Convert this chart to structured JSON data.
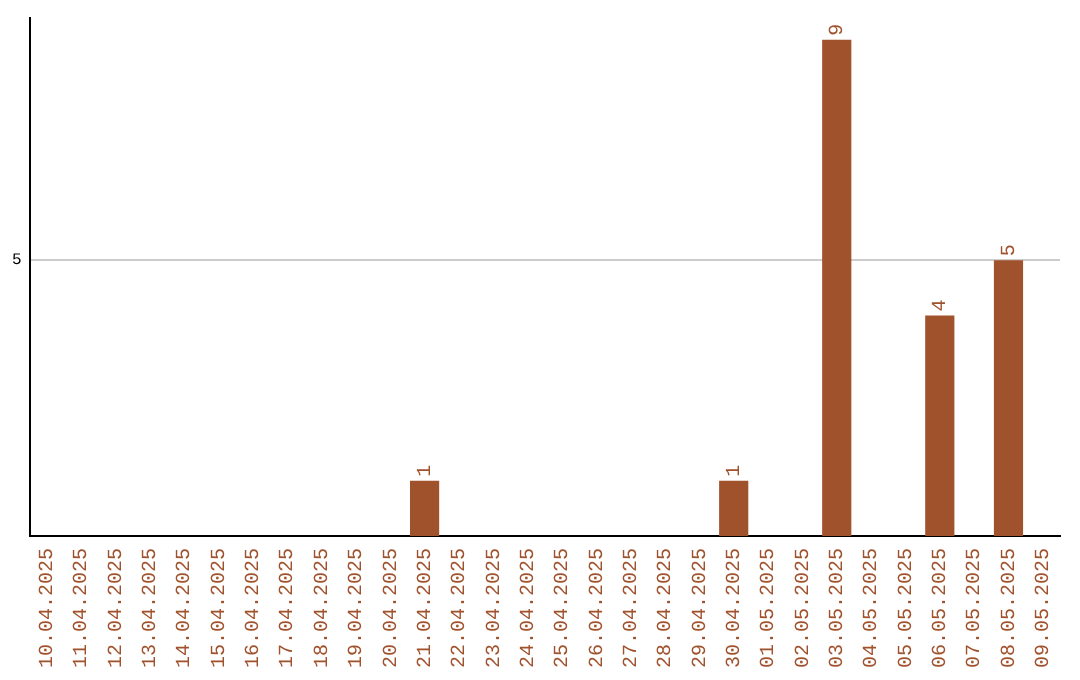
{
  "chart_data": {
    "type": "bar",
    "categories": [
      "10.04.2025",
      "11.04.2025",
      "12.04.2025",
      "13.04.2025",
      "14.04.2025",
      "15.04.2025",
      "16.04.2025",
      "17.04.2025",
      "18.04.2025",
      "19.04.2025",
      "20.04.2025",
      "21.04.2025",
      "22.04.2025",
      "23.04.2025",
      "24.04.2025",
      "25.04.2025",
      "26.04.2025",
      "27.04.2025",
      "28.04.2025",
      "29.04.2025",
      "30.04.2025",
      "01.05.2025",
      "02.05.2025",
      "03.05.2025",
      "04.05.2025",
      "05.05.2025",
      "06.05.2025",
      "07.05.2025",
      "08.05.2025",
      "09.05.2025"
    ],
    "values": [
      0,
      0,
      0,
      0,
      0,
      0,
      0,
      0,
      0,
      0,
      0,
      1,
      0,
      0,
      0,
      0,
      0,
      0,
      0,
      0,
      1,
      0,
      0,
      9,
      0,
      0,
      4,
      0,
      5,
      0
    ],
    "value_labels": [
      null,
      null,
      null,
      null,
      null,
      null,
      null,
      null,
      null,
      null,
      null,
      "1",
      null,
      null,
      null,
      null,
      null,
      null,
      null,
      null,
      "1",
      null,
      null,
      "9",
      null,
      null,
      "4",
      null,
      "5",
      null
    ],
    "color": "#a0522d",
    "ylim": [
      0,
      9.4
    ],
    "yticks": [
      5
    ],
    "grid": "y",
    "legend": false
  }
}
